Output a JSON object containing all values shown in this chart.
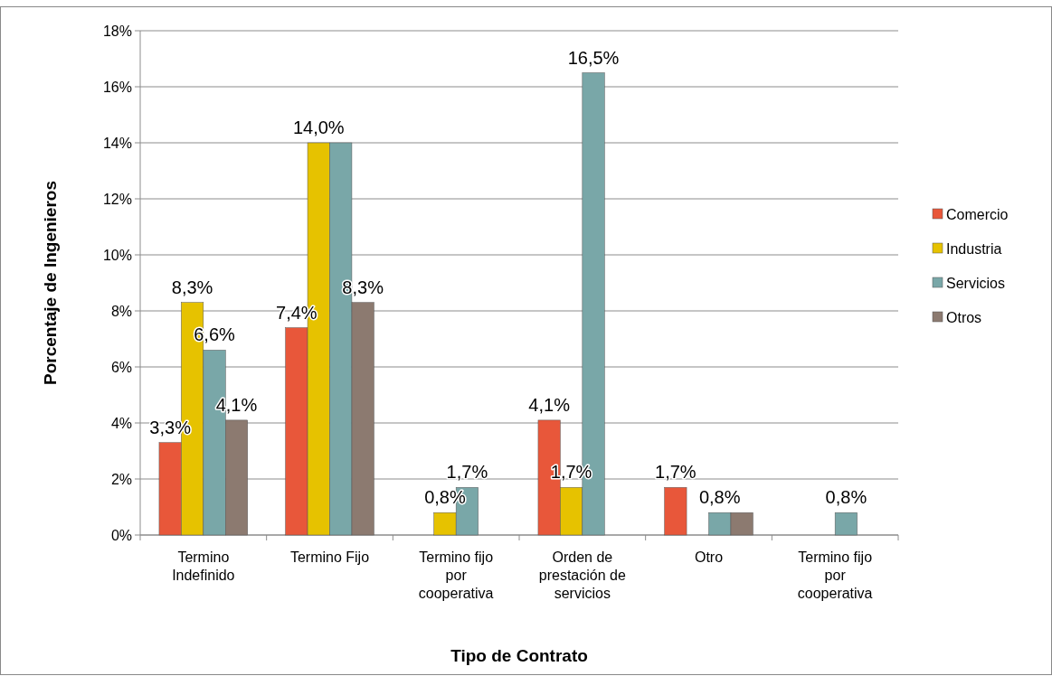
{
  "chart_data": {
    "type": "bar",
    "xlabel": "Tipo de Contrato",
    "ylabel": "Porcentaje de Ingenieros",
    "categories": [
      "Termino Indefinido",
      "Termino Fijo",
      "Termino fijo por cooperativa",
      "Orden de prestación de servicios",
      "Otro",
      "Termino fijo por cooperativa"
    ],
    "series": [
      {
        "name": "Comercio",
        "color": "#e8573a",
        "values": [
          3.3,
          7.4,
          null,
          4.1,
          1.7,
          null
        ],
        "value_labels": [
          "3,3%",
          "7,4%",
          null,
          "4,1%",
          "1,7%",
          null
        ]
      },
      {
        "name": "Industria",
        "color": "#e6c200",
        "values": [
          8.3,
          14.0,
          0.8,
          1.7,
          null,
          null
        ],
        "value_labels": [
          "8,3%",
          "14,0%",
          "0,8%",
          "1,7%",
          null,
          null
        ]
      },
      {
        "name": "Servicios",
        "color": "#79a7a8",
        "values": [
          6.6,
          14.0,
          1.7,
          16.5,
          0.8,
          0.8
        ],
        "value_labels": [
          "6,6%",
          null,
          "1,7%",
          "16,5%",
          "0,8%",
          "0,8%"
        ]
      },
      {
        "name": "Otros",
        "color": "#8c7a70",
        "values": [
          4.1,
          8.3,
          null,
          null,
          0.8,
          null
        ],
        "value_labels": [
          "4,1%",
          "8,3%",
          null,
          null,
          null,
          null
        ]
      }
    ],
    "ylim": [
      0,
      18
    ],
    "yticks": [
      {
        "value": 0,
        "label": "0%"
      },
      {
        "value": 2,
        "label": "2%"
      },
      {
        "value": 4,
        "label": "4%"
      },
      {
        "value": 6,
        "label": "6%"
      },
      {
        "value": 8,
        "label": "8%"
      },
      {
        "value": 10,
        "label": "10%"
      },
      {
        "value": 12,
        "label": "12%"
      },
      {
        "value": 14,
        "label": "14%"
      },
      {
        "value": 16,
        "label": "16%"
      },
      {
        "value": 18,
        "label": "18%"
      }
    ],
    "grid": "y",
    "legend": "right"
  }
}
